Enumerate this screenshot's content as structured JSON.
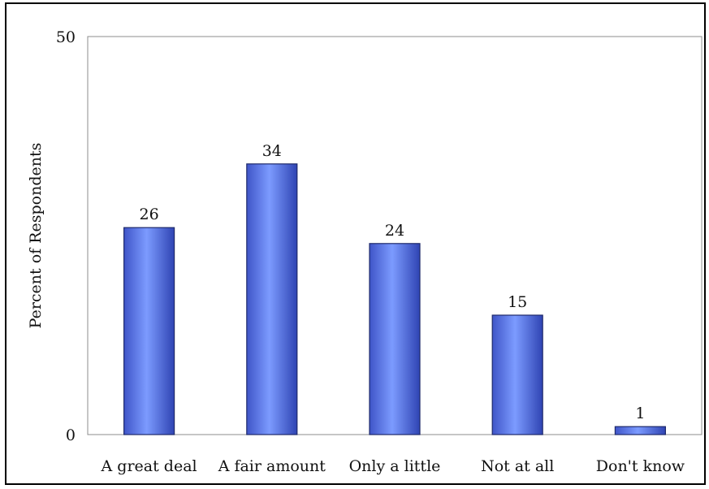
{
  "chart_data": {
    "type": "bar",
    "title": "",
    "xlabel": "",
    "ylabel": "Percent of Respondents",
    "categories": [
      "A great deal",
      "A fair amount",
      "Only a little",
      "Not at all",
      "Don't know"
    ],
    "values": [
      26,
      34,
      24,
      15,
      1
    ],
    "data_labels": [
      "26",
      "34",
      "24",
      "15",
      "1"
    ],
    "ylim": [
      0,
      50
    ],
    "yticks": [
      0,
      50
    ],
    "ytick_labels": [
      "0",
      "50"
    ],
    "grid": false,
    "legend": "none",
    "bar_color": "#5b7ef0",
    "bar_edge_color": "#1f2a6b"
  }
}
